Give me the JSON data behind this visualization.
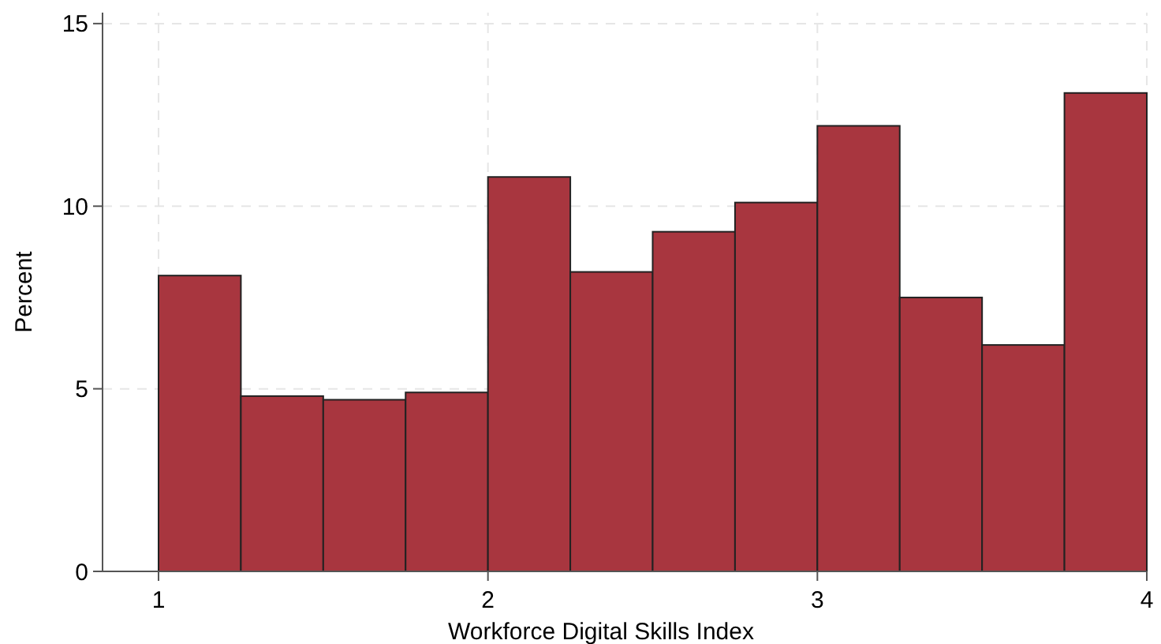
{
  "chart_data": {
    "type": "histogram",
    "xlabel": "Workforce Digital Skills Index",
    "ylabel": "Percent",
    "bins": [
      1,
      1.25,
      1.5,
      1.75,
      2,
      2.25,
      2.5,
      2.75,
      3,
      3.25,
      3.5,
      3.75,
      4
    ],
    "values": [
      8.1,
      4.8,
      4.7,
      4.9,
      10.8,
      8.2,
      9.3,
      10.1,
      12.2,
      7.5,
      6.2,
      13.1
    ],
    "color": "#a8363f",
    "xlim": [
      0.83,
      4
    ],
    "xticks": [
      1,
      2,
      3,
      4
    ],
    "ylim": [
      0,
      15.3
    ],
    "yticks": [
      0,
      5,
      10,
      15
    ],
    "grid": true
  }
}
